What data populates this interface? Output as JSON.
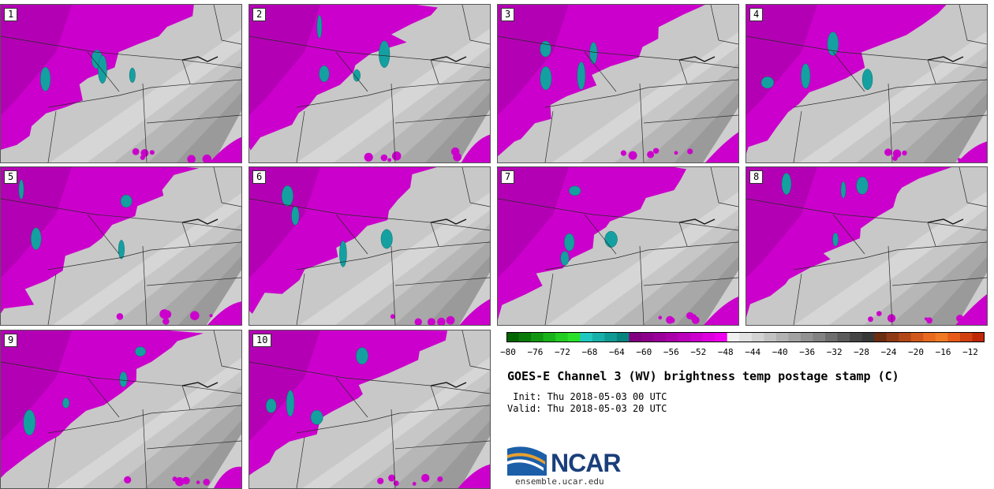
{
  "panels": [
    {
      "label": "1"
    },
    {
      "label": "2"
    },
    {
      "label": "3"
    },
    {
      "label": "4"
    },
    {
      "label": "5"
    },
    {
      "label": "6"
    },
    {
      "label": "7"
    },
    {
      "label": "8"
    },
    {
      "label": "9"
    },
    {
      "label": "10"
    }
  ],
  "colorbar": {
    "ticks": [
      "−80",
      "−76",
      "−72",
      "−68",
      "−64",
      "−60",
      "−56",
      "−52",
      "−48",
      "−44",
      "−40",
      "−36",
      "−32",
      "−28",
      "−24",
      "−20",
      "−16",
      "−12"
    ],
    "colors": [
      "#006400",
      "#0a7a0a",
      "#129612",
      "#1ab21a",
      "#22cc22",
      "#2ae02a",
      "#20c8c0",
      "#18b0aa",
      "#109a94",
      "#08847e",
      "#800080",
      "#8c008c",
      "#9a009a",
      "#aa00aa",
      "#bb00bb",
      "#cc00cc",
      "#dd00dd",
      "#ee00ee",
      "#f0f0f0",
      "#e2e2e2",
      "#d2d2d2",
      "#c2c2c2",
      "#b2b2b2",
      "#a2a2a2",
      "#929292",
      "#828282",
      "#6e6e6e",
      "#5a5a5a",
      "#464646",
      "#383838",
      "#6b2e10",
      "#8e3a14",
      "#b04818",
      "#d0581c",
      "#e86a20",
      "#f07a24",
      "#e85a1a",
      "#d04010",
      "#c02808"
    ]
  },
  "title": "GOES-E Channel 3 (WV) brightness temp postage stamp (C)",
  "init": " Init: Thu 2018-05-03 00 UTC",
  "valid": "Valid: Thu 2018-05-03 20 UTC",
  "logo_text": "NCAR",
  "site": "ensemble.ucar.edu"
}
